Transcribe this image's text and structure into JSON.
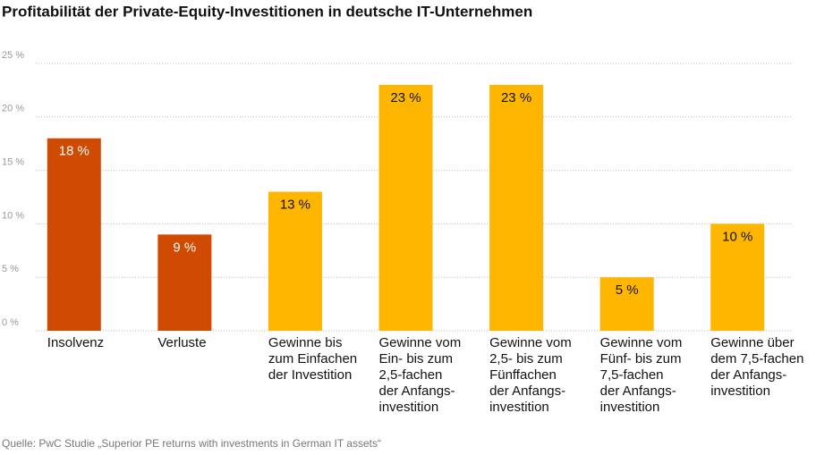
{
  "chart_data": {
    "type": "bar",
    "title": "Profitabilität der Private-Equity-Investitionen in deutsche IT-Unternehmen",
    "source": "Quelle: PwC Studie „Superior PE returns with investments in German IT assets“",
    "categories": [
      "Insolvenz",
      "Verluste",
      "Gewinne bis\nzum Einfachen\nder Investition",
      "Gewinne vom\nEin- bis zum\n2,5-fachen\nder Anfangs-\ninvestition",
      "Gewinne vom\n2,5- bis zum\nFünffachen\nder Anfangs-\ninvestition",
      "Gewinne vom\nFünf- bis zum\n7,5-fachen\nder Anfangs-\ninvestition",
      "Gewinne über\ndem 7,5-fachen\nder Anfangs-\ninvestition"
    ],
    "values": [
      18,
      9,
      13,
      23,
      23,
      5,
      10
    ],
    "value_labels": [
      "18 %",
      "9 %",
      "13 %",
      "23 %",
      "23 %",
      "5 %",
      "10 %"
    ],
    "colors": [
      "#d04a02",
      "#d04a02",
      "#ffb600",
      "#ffb600",
      "#ffb600",
      "#ffb600",
      "#ffb600"
    ],
    "ylim": [
      0,
      25
    ],
    "yticks": [
      {
        "value": 0,
        "label": "0 %"
      },
      {
        "value": 5,
        "label": "5 %"
      },
      {
        "value": 10,
        "label": "10 %"
      },
      {
        "value": 15,
        "label": "15 %"
      },
      {
        "value": 20,
        "label": "20 %"
      },
      {
        "value": 25,
        "label": "25 %"
      }
    ],
    "grid": true
  }
}
